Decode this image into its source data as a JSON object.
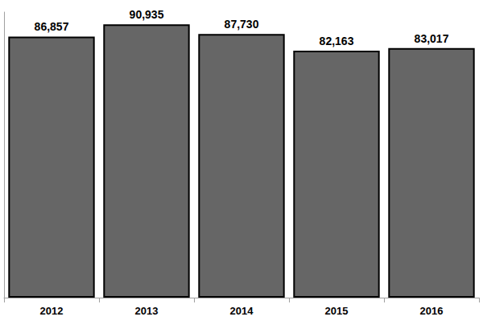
{
  "chart_data": {
    "type": "bar",
    "categories": [
      "2012",
      "2013",
      "2014",
      "2015",
      "2016"
    ],
    "values": [
      86857,
      90935,
      87730,
      82163,
      83017
    ],
    "value_labels": [
      "86,857",
      "90,935",
      "87,730",
      "82,163",
      "83,017"
    ],
    "color": "#666666",
    "ylim": [
      0,
      95000
    ],
    "grid": false,
    "data_labels": true,
    "tick_labels": "x"
  }
}
